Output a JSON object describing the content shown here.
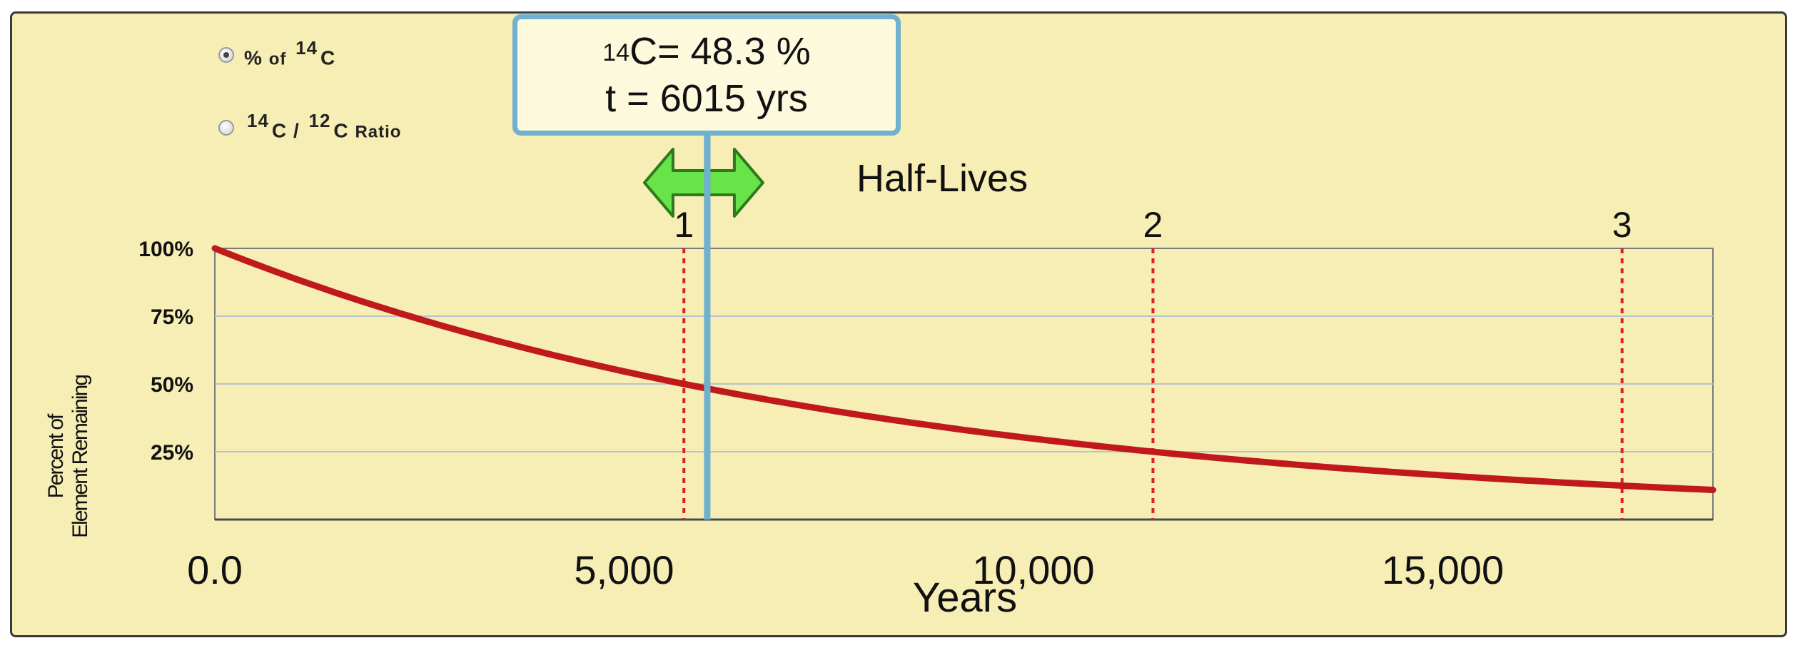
{
  "controls": {
    "mode_options": [
      {
        "label_prefix": "%",
        "label_of": "of",
        "isotope_mass": "14",
        "isotope_symbol": "C",
        "selected": true
      },
      {
        "mass_a": "14",
        "sym_a": "C",
        "separator": "/",
        "mass_b": "12",
        "sym_b": "C",
        "suffix": "Ratio",
        "selected": false
      }
    ]
  },
  "readout": {
    "isotope_mass": "14",
    "isotope_symbol": "C",
    "percent_text": "= 48.3 %",
    "time_text": "t = 6015 yrs"
  },
  "colors": {
    "panel_bg": "#f6eeb5",
    "curve": "#c0191b",
    "half_life_markers": "#e02020",
    "cursor_line": "#6fb1cf",
    "slider_arrow": "#69e34a"
  },
  "slider": {
    "icon": "double-arrow-icon"
  },
  "chart_data": {
    "type": "line",
    "half_lives_label": "Half-Lives",
    "xlabel": "Years",
    "ylabel_lines": [
      "Percent of",
      "Element Remaining"
    ],
    "xlim": [
      0,
      18300
    ],
    "ylim": [
      0,
      100
    ],
    "x_ticks": [
      {
        "value": 0,
        "label": "0.0"
      },
      {
        "value": 5000,
        "label": "5,000"
      },
      {
        "value": 10000,
        "label": "10,000"
      },
      {
        "value": 15000,
        "label": "15,000"
      }
    ],
    "y_ticks": [
      {
        "value": 100,
        "label": "100%"
      },
      {
        "value": 75,
        "label": "75%"
      },
      {
        "value": 50,
        "label": "50%"
      },
      {
        "value": 25,
        "label": "25%"
      }
    ],
    "grid": true,
    "half_life_years": 5730,
    "half_life_markers": [
      {
        "value": 5730,
        "label": "1"
      },
      {
        "value": 11460,
        "label": "2"
      },
      {
        "value": 17190,
        "label": "3"
      }
    ],
    "cursor": {
      "x": 6015,
      "y": 48.3
    },
    "series": [
      {
        "x": [
          0,
          1000,
          2000,
          3000,
          4000,
          5000,
          6000,
          7000,
          8000,
          9000,
          10000,
          11000,
          12000,
          13000,
          14000,
          15000,
          16000,
          17000,
          18000,
          18300
        ],
        "y": [
          100,
          88.6,
          78.5,
          69.5,
          61.6,
          54.6,
          48.4,
          42.9,
          38.0,
          33.7,
          29.8,
          26.4,
          23.4,
          20.7,
          18.4,
          16.3,
          14.4,
          12.8,
          11.3,
          10.9
        ]
      }
    ]
  }
}
